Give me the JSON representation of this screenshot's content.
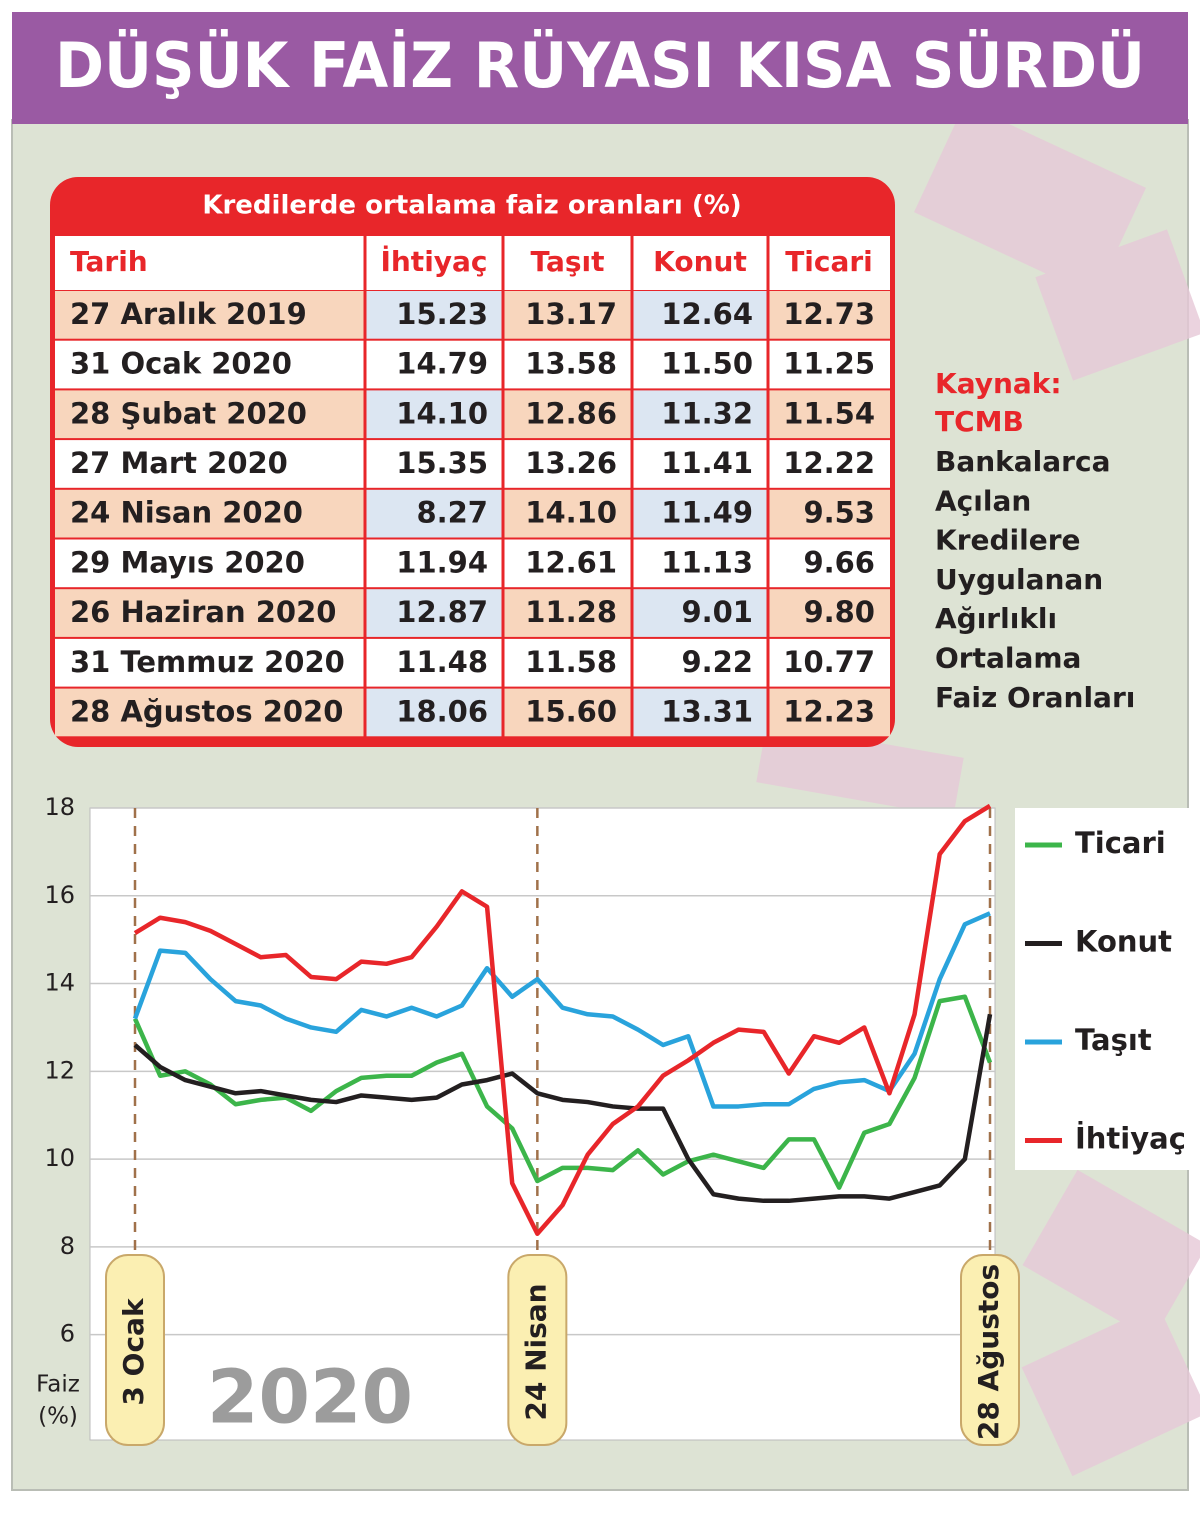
{
  "title": "DÜŞÜK FAİZ RÜYASI KISA SÜRDÜ",
  "table": {
    "title": "Kredilerde ortalama faiz oranları (%)",
    "columns": [
      "Tarih",
      "İhtiyaç",
      "Taşıt",
      "Konut",
      "Ticari"
    ],
    "rows": [
      [
        "27 Aralık 2019",
        "15.23",
        "13.17",
        "12.64",
        "12.73"
      ],
      [
        "31 Ocak 2020",
        "14.79",
        "13.58",
        "11.50",
        "11.25"
      ],
      [
        "28 Şubat 2020",
        "14.10",
        "12.86",
        "11.32",
        "11.54"
      ],
      [
        "27 Mart 2020",
        "15.35",
        "13.26",
        "11.41",
        "12.22"
      ],
      [
        "24 Nisan 2020",
        "8.27",
        "14.10",
        "11.49",
        "9.53"
      ],
      [
        "29 Mayıs 2020",
        "11.94",
        "12.61",
        "11.13",
        "9.66"
      ],
      [
        "26 Haziran 2020",
        "12.87",
        "11.28",
        "9.01",
        "9.80"
      ],
      [
        "31 Temmuz 2020",
        "11.48",
        "11.58",
        "9.22",
        "10.77"
      ],
      [
        "28 Ağustos 2020",
        "18.06",
        "15.60",
        "13.31",
        "12.23"
      ]
    ]
  },
  "source": {
    "label": "Kaynak:",
    "name": "TCMB",
    "lines": [
      "Bankalarca",
      "Açılan",
      "Kredilere",
      "Uygulanan",
      "Ağırlıklı",
      "Ortalama",
      "Faiz Oranları"
    ]
  },
  "chart_data": {
    "type": "line",
    "ylabel": [
      "Faiz",
      "(%)"
    ],
    "annotations": [
      "2020"
    ],
    "categories": [
      "3 Ocak",
      null,
      null,
      null,
      null,
      null,
      null,
      null,
      null,
      null,
      null,
      null,
      null,
      null,
      null,
      null,
      "24 Nisan",
      null,
      null,
      null,
      null,
      null,
      null,
      null,
      null,
      null,
      null,
      null,
      null,
      null,
      null,
      null,
      null,
      null,
      "28 Ağustos"
    ],
    "ylim": [
      3.6,
      18
    ],
    "yticks": [
      6,
      8,
      10,
      12,
      14,
      16,
      18
    ],
    "grid": true,
    "series": [
      {
        "name": "Ticari",
        "color": "#3cb54a",
        "values": [
          13.2,
          11.9,
          12.0,
          11.7,
          11.25,
          11.35,
          11.4,
          11.1,
          11.55,
          11.85,
          11.9,
          11.9,
          12.2,
          12.4,
          11.2,
          10.7,
          9.5,
          9.8,
          9.8,
          9.75,
          10.2,
          9.65,
          9.95,
          10.1,
          9.95,
          9.8,
          10.45,
          10.45,
          9.35,
          10.6,
          10.8,
          11.85,
          13.6,
          13.7,
          12.2
        ]
      },
      {
        "name": "Konut",
        "color": "#231f20",
        "values": [
          12.6,
          12.1,
          11.8,
          11.65,
          11.5,
          11.55,
          11.45,
          11.35,
          11.3,
          11.45,
          11.4,
          11.35,
          11.4,
          11.7,
          11.8,
          11.95,
          11.5,
          11.35,
          11.3,
          11.2,
          11.15,
          11.15,
          10.0,
          9.2,
          9.1,
          9.05,
          9.05,
          9.1,
          9.15,
          9.15,
          9.1,
          9.25,
          9.4,
          10.0,
          13.3
        ]
      },
      {
        "name": "Taşıt",
        "color": "#29a3dc",
        "values": [
          13.2,
          14.75,
          14.7,
          14.1,
          13.6,
          13.5,
          13.2,
          13.0,
          12.9,
          13.4,
          13.25,
          13.45,
          13.25,
          13.5,
          14.35,
          13.7,
          14.1,
          13.45,
          13.3,
          13.25,
          12.95,
          12.6,
          12.8,
          11.2,
          11.2,
          11.25,
          11.25,
          11.6,
          11.75,
          11.8,
          11.55,
          12.4,
          14.1,
          15.35,
          15.6
        ]
      },
      {
        "name": "İhtiyaç",
        "color": "#e8262a",
        "values": [
          15.15,
          15.5,
          15.4,
          15.2,
          14.9,
          14.6,
          14.65,
          14.15,
          14.1,
          14.5,
          14.45,
          14.6,
          15.3,
          16.1,
          15.75,
          9.45,
          8.3,
          8.95,
          10.1,
          10.8,
          11.2,
          11.9,
          12.25,
          12.65,
          12.95,
          12.9,
          11.95,
          12.8,
          12.65,
          13.0,
          11.5,
          13.3,
          16.95,
          17.7,
          18.05
        ]
      }
    ]
  }
}
